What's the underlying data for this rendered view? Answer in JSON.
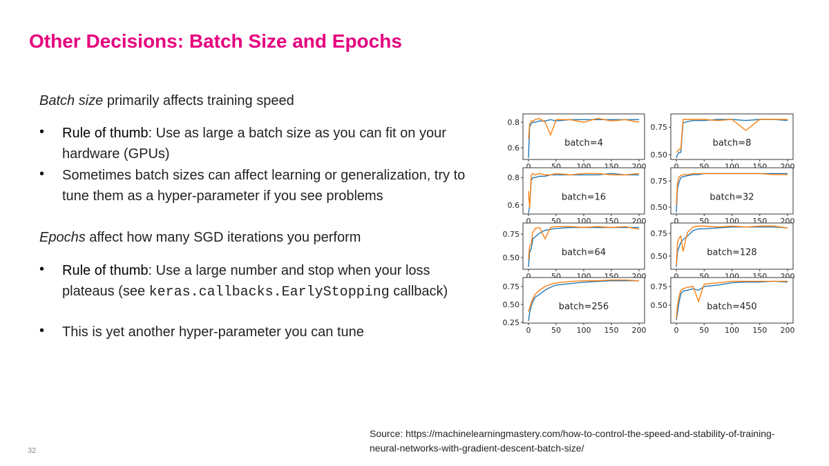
{
  "slide": {
    "title": "Other Decisions: Batch Size and Epochs",
    "batch_heading_em": "Batch size",
    "batch_heading_rest": " primarily affects training speed",
    "batch_bullets": [
      {
        "bold": "Rule of thumb",
        "text": ": Use as large a batch size as you can fit on your hardware (GPUs)"
      },
      {
        "bold": "",
        "text": "Sometimes batch sizes can affect learning or generalization, try to tune them as a hyper-parameter if you see problems"
      }
    ],
    "epochs_heading_em": "Epochs",
    "epochs_heading_rest": " affect how many SGD iterations you perform",
    "epochs_bullet1_bold": "Rule of thumb",
    "epochs_bullet1_text": ": Use a large number and stop when your loss plateaus (see ",
    "epochs_bullet1_code": "keras.callbacks.EarlyStopping",
    "epochs_bullet1_tail": " callback)",
    "epochs_bullet2": "This is yet another hyper-parameter you can tune",
    "bullet_char": "•",
    "source": "Source: https://machinelearningmastery.com/how-to-control-the-speed-and-stability-of-training-neural-networks-with-gradient-descent-batch-size/",
    "page_number": "32",
    "title_color": "#e6007e"
  },
  "chart_data": {
    "type": "line",
    "colors": [
      "#1f77b4",
      "#ff7f0e"
    ],
    "x": [
      0,
      2,
      5,
      8,
      12,
      20,
      30,
      40,
      50,
      75,
      100,
      125,
      150,
      175,
      200
    ],
    "xticks": [
      0,
      50,
      100,
      150,
      200
    ],
    "xlim": [
      -10,
      210
    ],
    "panels": [
      {
        "label": "batch=4",
        "ylim": [
          0.508,
          0.865
        ],
        "yticks": [
          0.6,
          0.8
        ],
        "ytick_labels": [
          "0.6",
          "0.8"
        ],
        "series": [
          {
            "values": [
              0.52,
              0.76,
              0.79,
              0.8,
              0.8,
              0.81,
              0.81,
              0.82,
              0.81,
              0.82,
              0.82,
              0.82,
              0.82,
              0.82,
              0.82
            ]
          },
          {
            "values": [
              0.67,
              0.78,
              0.81,
              0.81,
              0.82,
              0.83,
              0.8,
              0.7,
              0.82,
              0.82,
              0.8,
              0.83,
              0.81,
              0.82,
              0.8
            ]
          }
        ]
      },
      {
        "label": "batch=8",
        "ylim": [
          0.456,
          0.87
        ],
        "yticks": [
          0.5,
          0.75
        ],
        "ytick_labels": [
          "0.50",
          "0.75"
        ],
        "series": [
          {
            "values": [
              0.47,
              0.5,
              0.52,
              0.52,
              0.79,
              0.8,
              0.81,
              0.81,
              0.81,
              0.82,
              0.82,
              0.81,
              0.82,
              0.82,
              0.81
            ]
          },
          {
            "values": [
              0.52,
              0.53,
              0.55,
              0.55,
              0.82,
              0.82,
              0.82,
              0.82,
              0.82,
              0.81,
              0.82,
              0.72,
              0.82,
              0.82,
              0.82
            ]
          }
        ]
      },
      {
        "label": "batch=16",
        "ylim": [
          0.533,
          0.872
        ],
        "yticks": [
          0.6,
          0.8
        ],
        "ytick_labels": [
          "0.6",
          "0.8"
        ],
        "series": [
          {
            "values": [
              0.54,
              0.59,
              0.78,
              0.8,
              0.8,
              0.81,
              0.81,
              0.82,
              0.82,
              0.82,
              0.82,
              0.82,
              0.83,
              0.82,
              0.82
            ]
          },
          {
            "values": [
              0.7,
              0.58,
              0.82,
              0.83,
              0.82,
              0.83,
              0.82,
              0.82,
              0.83,
              0.82,
              0.83,
              0.83,
              0.82,
              0.82,
              0.83
            ]
          }
        ]
      },
      {
        "label": "batch=32",
        "ylim": [
          0.434,
          0.875
        ],
        "yticks": [
          0.5,
          0.75
        ],
        "ytick_labels": [
          "0.50",
          "0.75"
        ],
        "series": [
          {
            "values": [
              0.45,
              0.68,
              0.74,
              0.78,
              0.79,
              0.8,
              0.81,
              0.81,
              0.82,
              0.82,
              0.82,
              0.82,
              0.82,
              0.82,
              0.82
            ]
          },
          {
            "values": [
              0.52,
              0.73,
              0.79,
              0.8,
              0.81,
              0.81,
              0.82,
              0.82,
              0.82,
              0.82,
              0.82,
              0.82,
              0.82,
              0.81,
              0.81
            ]
          }
        ]
      },
      {
        "label": "batch=64",
        "ylim": [
          0.375,
          0.868
        ],
        "yticks": [
          0.5,
          0.75
        ],
        "ytick_labels": [
          "0.50",
          "0.75"
        ],
        "series": [
          {
            "values": [
              0.4,
              0.55,
              0.6,
              0.7,
              0.72,
              0.76,
              0.79,
              0.8,
              0.81,
              0.82,
              0.82,
              0.82,
              0.82,
              0.82,
              0.82
            ]
          },
          {
            "values": [
              0.48,
              0.62,
              0.65,
              0.77,
              0.81,
              0.82,
              0.7,
              0.82,
              0.83,
              0.83,
              0.82,
              0.83,
              0.82,
              0.83,
              0.8
            ]
          }
        ]
      },
      {
        "label": "batch=128",
        "ylim": [
          0.355,
          0.864
        ],
        "yticks": [
          0.5,
          0.75
        ],
        "ytick_labels": [
          "0.50",
          "0.75"
        ],
        "series": [
          {
            "values": [
              0.38,
              0.55,
              0.6,
              0.65,
              0.68,
              0.72,
              0.78,
              0.8,
              0.8,
              0.81,
              0.82,
              0.82,
              0.82,
              0.82,
              0.81
            ]
          },
          {
            "values": [
              0.4,
              0.65,
              0.7,
              0.72,
              0.55,
              0.76,
              0.82,
              0.83,
              0.83,
              0.82,
              0.83,
              0.82,
              0.83,
              0.83,
              0.81
            ]
          }
        ]
      },
      {
        "label": "batch=256",
        "ylim": [
          0.24,
          0.875
        ],
        "yticks": [
          0.25,
          0.5,
          0.75
        ],
        "ytick_labels": [
          "0.25",
          "0.50",
          "0.75"
        ],
        "series": [
          {
            "values": [
              0.27,
              0.38,
              0.48,
              0.54,
              0.6,
              0.64,
              0.7,
              0.74,
              0.77,
              0.79,
              0.81,
              0.82,
              0.83,
              0.83,
              0.83
            ]
          },
          {
            "values": [
              0.4,
              0.45,
              0.52,
              0.58,
              0.64,
              0.7,
              0.75,
              0.78,
              0.8,
              0.82,
              0.83,
              0.83,
              0.84,
              0.84,
              0.83
            ]
          }
        ]
      },
      {
        "label": "batch=450",
        "ylim": [
          0.26,
          0.87
        ],
        "yticks": [
          0.5,
          0.75
        ],
        "ytick_labels": [
          "0.50",
          "0.75"
        ],
        "series": [
          {
            "values": [
              0.3,
              0.4,
              0.55,
              0.65,
              0.69,
              0.7,
              0.72,
              0.7,
              0.75,
              0.77,
              0.8,
              0.81,
              0.81,
              0.82,
              0.81
            ]
          },
          {
            "values": [
              0.32,
              0.5,
              0.62,
              0.7,
              0.72,
              0.74,
              0.75,
              0.55,
              0.78,
              0.8,
              0.82,
              0.82,
              0.82,
              0.82,
              0.82
            ]
          }
        ]
      }
    ]
  }
}
